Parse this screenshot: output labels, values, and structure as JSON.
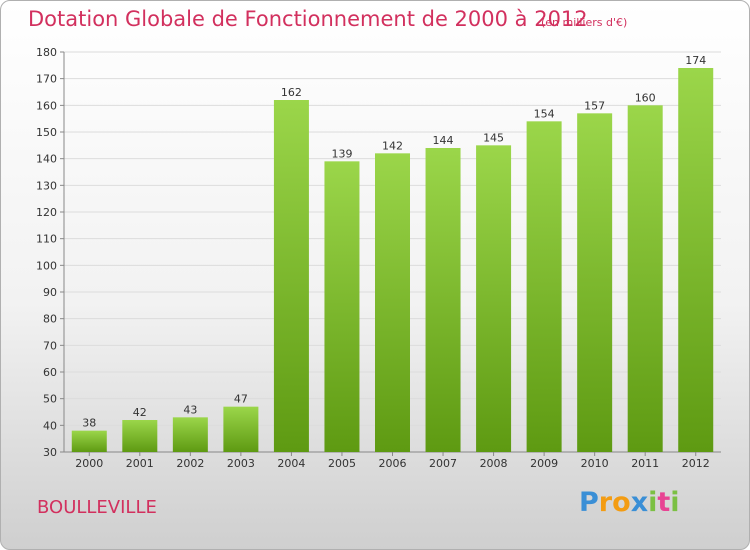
{
  "title": "Dotation Globale de Fonctionnement de 2000 à 2012",
  "unit": "(en milliers d'€)",
  "commune": "BOULLEVILLE",
  "logo": {
    "text": "Proxiti",
    "letters": [
      "P",
      "r",
      "o",
      "x",
      "i",
      "t",
      "i"
    ],
    "colors": [
      "#3a8fd6",
      "#f39c12",
      "#f39c12",
      "#3a8fd6",
      "#7bc043",
      "#e84393",
      "#7bc043"
    ]
  },
  "colors": {
    "bar_top": "#9bd64a",
    "bar_bottom": "#5e9a12",
    "title": "#d2305e"
  },
  "chart_data": {
    "type": "bar",
    "categories": [
      "2000",
      "2001",
      "2002",
      "2003",
      "2004",
      "2005",
      "2006",
      "2007",
      "2008",
      "2009",
      "2010",
      "2011",
      "2012"
    ],
    "values": [
      38,
      42,
      43,
      47,
      162,
      139,
      142,
      144,
      145,
      154,
      157,
      160,
      174
    ],
    "yticks": [
      30,
      40,
      50,
      60,
      70,
      80,
      90,
      100,
      110,
      120,
      130,
      140,
      150,
      160,
      170,
      180
    ],
    "ylim": [
      30,
      180
    ],
    "grid": true
  }
}
